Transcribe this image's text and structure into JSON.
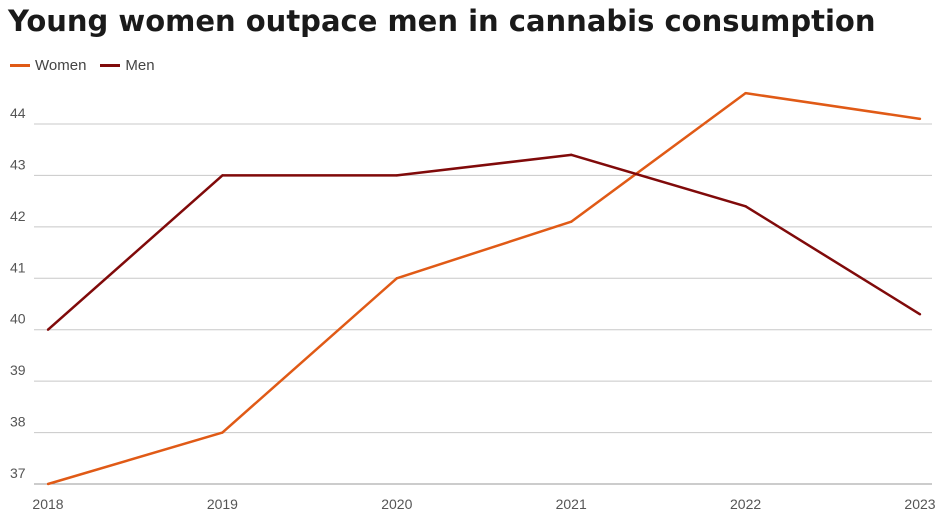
{
  "chart_data": {
    "type": "line",
    "title": "Young women outpace men in cannabis consumption",
    "xlabel": "",
    "ylabel": "",
    "x": [
      "2018",
      "2019",
      "2020",
      "2021",
      "2022",
      "2023"
    ],
    "series": [
      {
        "name": "Women",
        "color": "#e05a16",
        "values": [
          37.0,
          38.0,
          41.0,
          42.1,
          44.6,
          44.1
        ]
      },
      {
        "name": "Men",
        "color": "#800a0a",
        "values": [
          40.0,
          43.0,
          43.0,
          43.4,
          42.4,
          40.3
        ]
      }
    ],
    "yticks": [
      37,
      38,
      39,
      40,
      41,
      42,
      43,
      44
    ],
    "ylim": [
      37,
      45
    ],
    "grid": true,
    "legend_position": "top-left"
  }
}
